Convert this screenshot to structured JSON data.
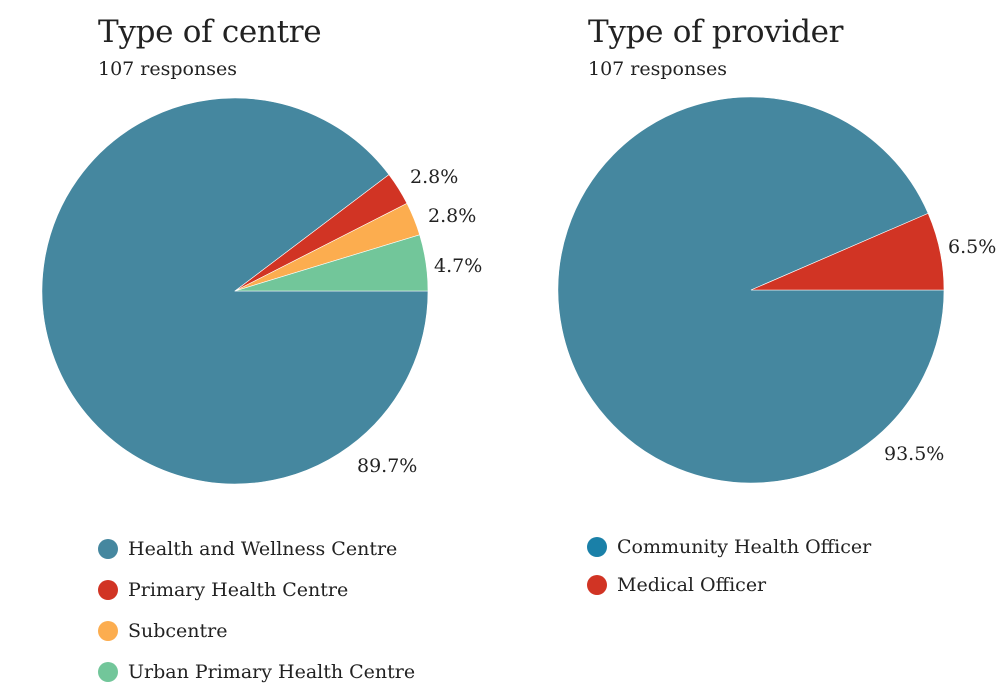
{
  "chart_data": [
    {
      "type": "pie",
      "title": "Type of centre",
      "subtitle": "107 responses",
      "slices": [
        {
          "label": "Health and Wellness Centre",
          "value": 89.7,
          "pct_label": "89.7%",
          "color": "#45879f"
        },
        {
          "label": "Primary Health Centre",
          "value": 2.8,
          "pct_label": "2.8%",
          "color": "#d13424"
        },
        {
          "label": "Subcentre",
          "value": 2.8,
          "pct_label": "2.8%",
          "color": "#fcad4f"
        },
        {
          "label": "Urban Primary Health Centre",
          "value": 4.7,
          "pct_label": "4.7%",
          "color": "#72c69a"
        }
      ]
    },
    {
      "type": "pie",
      "title": "Type of provider",
      "subtitle": "107 responses",
      "slices": [
        {
          "label": "Community Health Officer",
          "value": 93.5,
          "pct_label": "93.5%",
          "color": "#45879f",
          "legend_color": "#1a80a8"
        },
        {
          "label": "Medical Officer",
          "value": 6.5,
          "pct_label": "6.5%",
          "color": "#d13424"
        }
      ]
    }
  ]
}
